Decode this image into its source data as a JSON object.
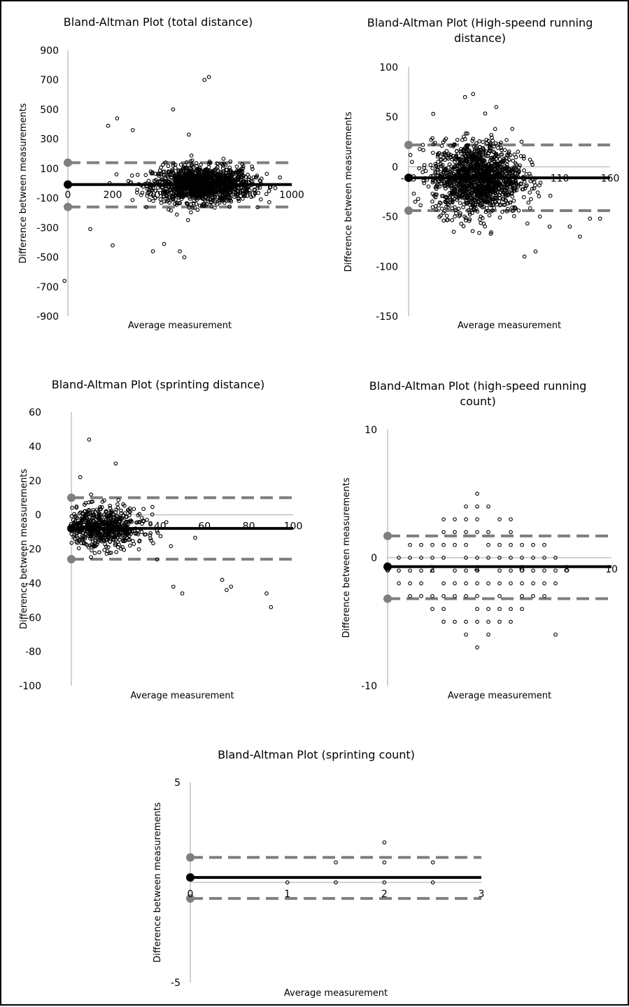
{
  "chart_data": [
    {
      "type": "scatter",
      "title": [
        "Bland-Altman Plot (total distance)"
      ],
      "xlabel": "Average measurement",
      "ylabel": "Difference between measurements",
      "xlim": [
        0,
        1000
      ],
      "ylim": [
        -900,
        900
      ],
      "xticks": [
        "0",
        "200",
        "400",
        "600",
        "800",
        "1000"
      ],
      "yticks": [
        "900",
        "700",
        "500",
        "300",
        "100",
        "-100",
        "-300",
        "-500",
        "-700",
        "-900"
      ],
      "mean_bias": -8,
      "upper_loa": 140,
      "lower_loa": -160,
      "points_summary": {
        "count_approx": 2500,
        "center_x": 600,
        "spread_x": 110,
        "spread_y": 60
      },
      "outliers": [
        [
          610,
          700
        ],
        [
          630,
          720
        ],
        [
          470,
          500
        ],
        [
          220,
          440
        ],
        [
          180,
          390
        ],
        [
          540,
          330
        ],
        [
          290,
          360
        ],
        [
          -15,
          -660
        ],
        [
          520,
          -500
        ],
        [
          500,
          -460
        ],
        [
          380,
          -460
        ],
        [
          430,
          -410
        ],
        [
          200,
          -420
        ],
        [
          100,
          -310
        ]
      ]
    },
    {
      "type": "scatter",
      "title": [
        "Bland-Altman Plot (High-speend running",
        "distance)"
      ],
      "xlabel": "Average measurement",
      "ylabel": "Difference between measurements",
      "xlim": [
        -40,
        160
      ],
      "ylim": [
        -150,
        100
      ],
      "xticks": [
        "-40",
        "10",
        "60",
        "110",
        "160"
      ],
      "yticks": [
        "100",
        "50",
        "0",
        "-50",
        "-100",
        "-150"
      ],
      "mean_bias": -11,
      "upper_loa": 22,
      "lower_loa": -44,
      "points_summary": {
        "count_approx": 1800,
        "center_x": 28,
        "spread_x": 22,
        "spread_y": 18
      },
      "outliers": [
        [
          16,
          70
        ],
        [
          24,
          73
        ],
        [
          47,
          60
        ],
        [
          150,
          -52
        ],
        [
          130,
          -70
        ],
        [
          75,
          -90
        ],
        [
          86,
          -85
        ],
        [
          100,
          -60
        ],
        [
          120,
          -60
        ],
        [
          140,
          -52
        ]
      ]
    },
    {
      "type": "scatter",
      "title": [
        "Bland-Altman Plot (sprinting distance)"
      ],
      "xlabel": "Average measurement",
      "ylabel": "Difference between measurements",
      "xlim": [
        0,
        100
      ],
      "ylim": [
        -100,
        60
      ],
      "xticks": [
        "0",
        "20",
        "40",
        "60",
        "80",
        "100"
      ],
      "yticks": [
        "60",
        "40",
        "20",
        "0",
        "-20",
        "-40",
        "-60",
        "-80",
        "-100"
      ],
      "mean_bias": -8,
      "upper_loa": 10,
      "lower_loa": -26,
      "points_summary": {
        "count_approx": 700,
        "center_x": 13,
        "spread_x": 10,
        "spread_y": 6
      },
      "outliers": [
        [
          8,
          44
        ],
        [
          20,
          30
        ],
        [
          4,
          22
        ],
        [
          90,
          -54
        ],
        [
          88,
          -46
        ],
        [
          70,
          -44
        ],
        [
          72,
          -42
        ],
        [
          68,
          -38
        ],
        [
          50,
          -46
        ],
        [
          46,
          -42
        ]
      ]
    },
    {
      "type": "scatter",
      "title": [
        "Bland-Altman Plot (high-speed running",
        "count)"
      ],
      "xlabel": "Average measurement",
      "ylabel": "Difference between measurements",
      "xlim": [
        0,
        10
      ],
      "ylim": [
        -10,
        10
      ],
      "xticks": [
        "0",
        "2",
        "4",
        "6",
        "8",
        "10"
      ],
      "yticks": [
        "10",
        "0",
        "-10"
      ],
      "mean_bias": -0.7,
      "upper_loa": 1.7,
      "lower_loa": -3.2,
      "points_summary": {
        "grid_step_x": 0.5,
        "grid_step_y": 1
      }
    },
    {
      "type": "scatter",
      "title": [
        "Bland-Altman Plot (sprinting count)"
      ],
      "xlabel": "Average measurement",
      "ylabel": "Difference between measurements",
      "xlim": [
        0,
        3
      ],
      "ylim": [
        -5,
        5
      ],
      "xticks": [
        "0",
        "1",
        "2",
        "3"
      ],
      "yticks": [
        "5",
        "-5"
      ],
      "mean_bias": 0.25,
      "upper_loa": 1.25,
      "lower_loa": -0.8,
      "points": [
        [
          1,
          0
        ],
        [
          1.5,
          0
        ],
        [
          1.5,
          1
        ],
        [
          2,
          0
        ],
        [
          2,
          1
        ],
        [
          2,
          2
        ],
        [
          2.5,
          0
        ],
        [
          2.5,
          1
        ]
      ]
    }
  ]
}
